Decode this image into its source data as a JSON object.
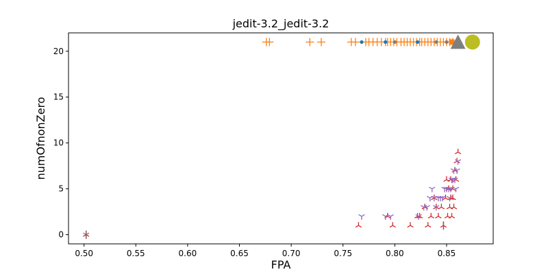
{
  "chart_data": {
    "type": "scatter",
    "title": "jedit-3.2_jedit-3.2",
    "xlabel": "FPA",
    "ylabel": "numOfnonZero",
    "xlim": [
      0.485,
      0.895
    ],
    "ylim": [
      -1.0,
      22.0
    ],
    "x_ticks": [
      "0.50",
      "0.55",
      "0.60",
      "0.65",
      "0.70",
      "0.75",
      "0.80",
      "0.85"
    ],
    "y_ticks": [
      "0",
      "5",
      "10",
      "15",
      "20"
    ],
    "grid": false,
    "legend": "none",
    "series": [
      {
        "marker": "plus",
        "color": "#ff7f0e",
        "points": [
          [
            0.676,
            21
          ],
          [
            0.679,
            21
          ],
          [
            0.718,
            21
          ],
          [
            0.729,
            21
          ],
          [
            0.758,
            21
          ],
          [
            0.762,
            21
          ],
          [
            0.772,
            21
          ],
          [
            0.775,
            21
          ],
          [
            0.779,
            21
          ],
          [
            0.783,
            21
          ],
          [
            0.787,
            21
          ],
          [
            0.791,
            21
          ],
          [
            0.793,
            21
          ],
          [
            0.796,
            21
          ],
          [
            0.799,
            21
          ],
          [
            0.802,
            21
          ],
          [
            0.806,
            21
          ],
          [
            0.809,
            21
          ],
          [
            0.812,
            21
          ],
          [
            0.815,
            21
          ],
          [
            0.818,
            21
          ],
          [
            0.821,
            21
          ],
          [
            0.824,
            21
          ],
          [
            0.826,
            21
          ],
          [
            0.829,
            21
          ],
          [
            0.832,
            21
          ],
          [
            0.835,
            21
          ],
          [
            0.838,
            21
          ],
          [
            0.841,
            21
          ],
          [
            0.844,
            21
          ],
          [
            0.847,
            21
          ],
          [
            0.85,
            21
          ],
          [
            0.853,
            21
          ],
          [
            0.856,
            21
          ]
        ]
      },
      {
        "marker": "dot",
        "color": "#1f77b4",
        "points": [
          [
            0.768,
            21
          ],
          [
            0.791,
            21
          ],
          [
            0.822,
            21
          ]
        ]
      },
      {
        "marker": "dot",
        "color": "#7f7f7f",
        "points": [
          [
            0.8,
            21
          ],
          [
            0.84,
            21
          ],
          [
            0.85,
            21
          ]
        ]
      },
      {
        "marker": "square",
        "color": "#ff7f0e",
        "points": [
          [
            0.855,
            21
          ]
        ]
      },
      {
        "marker": "triangle",
        "color": "#7f7f7f",
        "points": [
          [
            0.861,
            21
          ]
        ]
      },
      {
        "marker": "circle",
        "color": "#bcbd22",
        "points": [
          [
            0.875,
            21
          ]
        ]
      },
      {
        "marker": "tri_down",
        "color": "#d62728",
        "points": [
          [
            0.502,
            0
          ],
          [
            0.765,
            1
          ],
          [
            0.793,
            2
          ],
          [
            0.798,
            1
          ],
          [
            0.815,
            1
          ],
          [
            0.822,
            2
          ],
          [
            0.824,
            2
          ],
          [
            0.829,
            3
          ],
          [
            0.832,
            1
          ],
          [
            0.835,
            2
          ],
          [
            0.838,
            4
          ],
          [
            0.84,
            3
          ],
          [
            0.842,
            2
          ],
          [
            0.845,
            3
          ],
          [
            0.847,
            1
          ],
          [
            0.849,
            4
          ],
          [
            0.85,
            6
          ],
          [
            0.851,
            2
          ],
          [
            0.852,
            5
          ],
          [
            0.853,
            3
          ],
          [
            0.854,
            4
          ],
          [
            0.855,
            2
          ],
          [
            0.856,
            5
          ],
          [
            0.857,
            3
          ],
          [
            0.858,
            7
          ],
          [
            0.859,
            6
          ],
          [
            0.86,
            8
          ],
          [
            0.861,
            9
          ],
          [
            0.856,
            4
          ],
          [
            0.854,
            6
          ]
        ]
      },
      {
        "marker": "tri_up",
        "color": "#9467bd",
        "points": [
          [
            0.502,
            0
          ],
          [
            0.768,
            2
          ],
          [
            0.791,
            2
          ],
          [
            0.796,
            2
          ],
          [
            0.823,
            2
          ],
          [
            0.828,
            3
          ],
          [
            0.831,
            3
          ],
          [
            0.834,
            4
          ],
          [
            0.836,
            5
          ],
          [
            0.838,
            4
          ],
          [
            0.84,
            3
          ],
          [
            0.842,
            4
          ],
          [
            0.844,
            4
          ],
          [
            0.846,
            4
          ],
          [
            0.848,
            5
          ],
          [
            0.85,
            5
          ],
          [
            0.852,
            5
          ],
          [
            0.853,
            4
          ],
          [
            0.854,
            5
          ],
          [
            0.855,
            6
          ],
          [
            0.856,
            6
          ],
          [
            0.857,
            7
          ],
          [
            0.858,
            6
          ],
          [
            0.859,
            5
          ],
          [
            0.86,
            7
          ],
          [
            0.861,
            8
          ]
        ]
      },
      {
        "marker": "vline",
        "color": "#8c564b",
        "points": [
          [
            0.502,
            0
          ],
          [
            0.847,
            1
          ]
        ]
      }
    ]
  }
}
